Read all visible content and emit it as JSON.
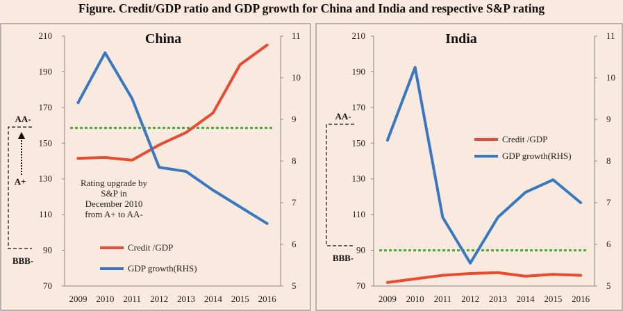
{
  "figure_title": "Figure. Credit/GDP ratio and GDP growth for China and India and respective S&P rating",
  "colors": {
    "credit": "#e84c30",
    "gdp": "#3878c0",
    "rating_line": "#44a833",
    "background": "#f9e9de",
    "axis": "#888888"
  },
  "chart_data": [
    {
      "type": "line",
      "title": "China",
      "categories": [
        "2009",
        "2010",
        "2011",
        "2012",
        "2013",
        "2014",
        "2015",
        "2016"
      ],
      "series": [
        {
          "name": "Credit /GDP",
          "axis": "left",
          "values": [
            141.5,
            142,
            140.5,
            149,
            156,
            167,
            194,
            205
          ]
        },
        {
          "name": "GDP growth(RHS)",
          "axis": "right",
          "values": [
            9.4,
            10.6,
            9.5,
            7.85,
            7.75,
            7.3,
            6.9,
            6.5
          ]
        }
      ],
      "ylim_left": [
        70,
        210
      ],
      "yticks_left": [
        70,
        90,
        110,
        130,
        150,
        170,
        190,
        210
      ],
      "ylim_right": [
        5,
        11
      ],
      "yticks_right": [
        5,
        6,
        7,
        8,
        9,
        10,
        11
      ],
      "reference_line": {
        "axis": "left",
        "value": 158.5,
        "style": "dotted"
      },
      "ratings": {
        "top": "AA-",
        "middle": "A+",
        "bottom": "BBB-"
      },
      "annotation": [
        "Rating upgrade by",
        "S&P  in",
        "December 2010",
        "from A+ to AA-"
      ],
      "legend_position": "bottom-center"
    },
    {
      "type": "line",
      "title": "India",
      "categories": [
        "2009",
        "2010",
        "2011",
        "2012",
        "2013",
        "2014",
        "2015",
        "2016"
      ],
      "series": [
        {
          "name": "Credit /GDP",
          "axis": "left",
          "values": [
            72,
            74,
            76,
            77,
            77.5,
            75.5,
            76.5,
            76
          ]
        },
        {
          "name": "GDP growth(RHS)",
          "axis": "right",
          "values": [
            8.5,
            10.25,
            6.65,
            5.55,
            6.65,
            7.25,
            7.55,
            7.0
          ]
        }
      ],
      "ylim_left": [
        70,
        210
      ],
      "yticks_left": [
        70,
        90,
        110,
        130,
        150,
        170,
        190,
        210
      ],
      "ylim_right": [
        5,
        11
      ],
      "yticks_right": [
        5,
        6,
        7,
        8,
        9,
        10,
        11
      ],
      "reference_line": {
        "axis": "left",
        "value": 90,
        "style": "dotted"
      },
      "ratings": {
        "top": "AA-",
        "bottom": "BBB-"
      },
      "legend_position": "middle-right"
    }
  ]
}
